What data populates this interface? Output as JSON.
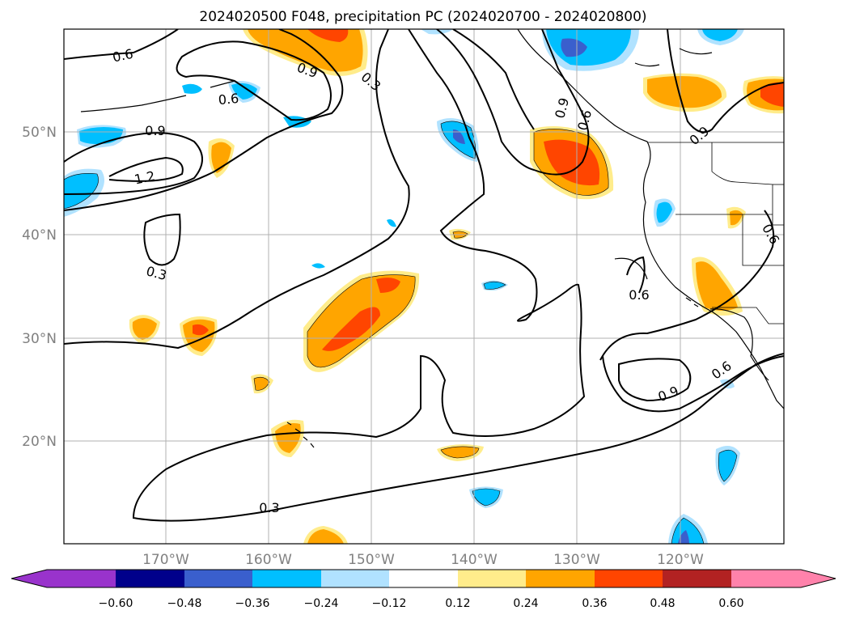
{
  "title": "2024020500 F048, precipitation PC (2024020700 - 2024020800)",
  "lat_labels": [
    "50°N",
    "40°N",
    "30°N",
    "20°N"
  ],
  "lon_labels": [
    "170°W",
    "160°W",
    "150°W",
    "140°W",
    "130°W",
    "120°W"
  ],
  "colorbar": {
    "tick_labels": [
      "−0.60",
      "−0.48",
      "−0.36",
      "−0.24",
      "−0.12",
      "0.12",
      "0.24",
      "0.36",
      "0.48",
      "0.60"
    ],
    "colors": [
      "#9933cc",
      "#00008b",
      "#3a5fcd",
      "#00bfff",
      "#b0e2ff",
      "#ffffff",
      "#ffec8b",
      "#ffa500",
      "#ff4500",
      "#b22222",
      "#ff82ab"
    ],
    "extend": "both"
  },
  "contour_labels": [
    "0.6",
    "0.9",
    "0.3",
    "0.6",
    "0.9",
    "1.2",
    "0.3",
    "0.9",
    "0.6",
    "0.9",
    "0.6",
    "0.6",
    "0.6",
    "0.6",
    "0.9",
    "0.3"
  ]
}
